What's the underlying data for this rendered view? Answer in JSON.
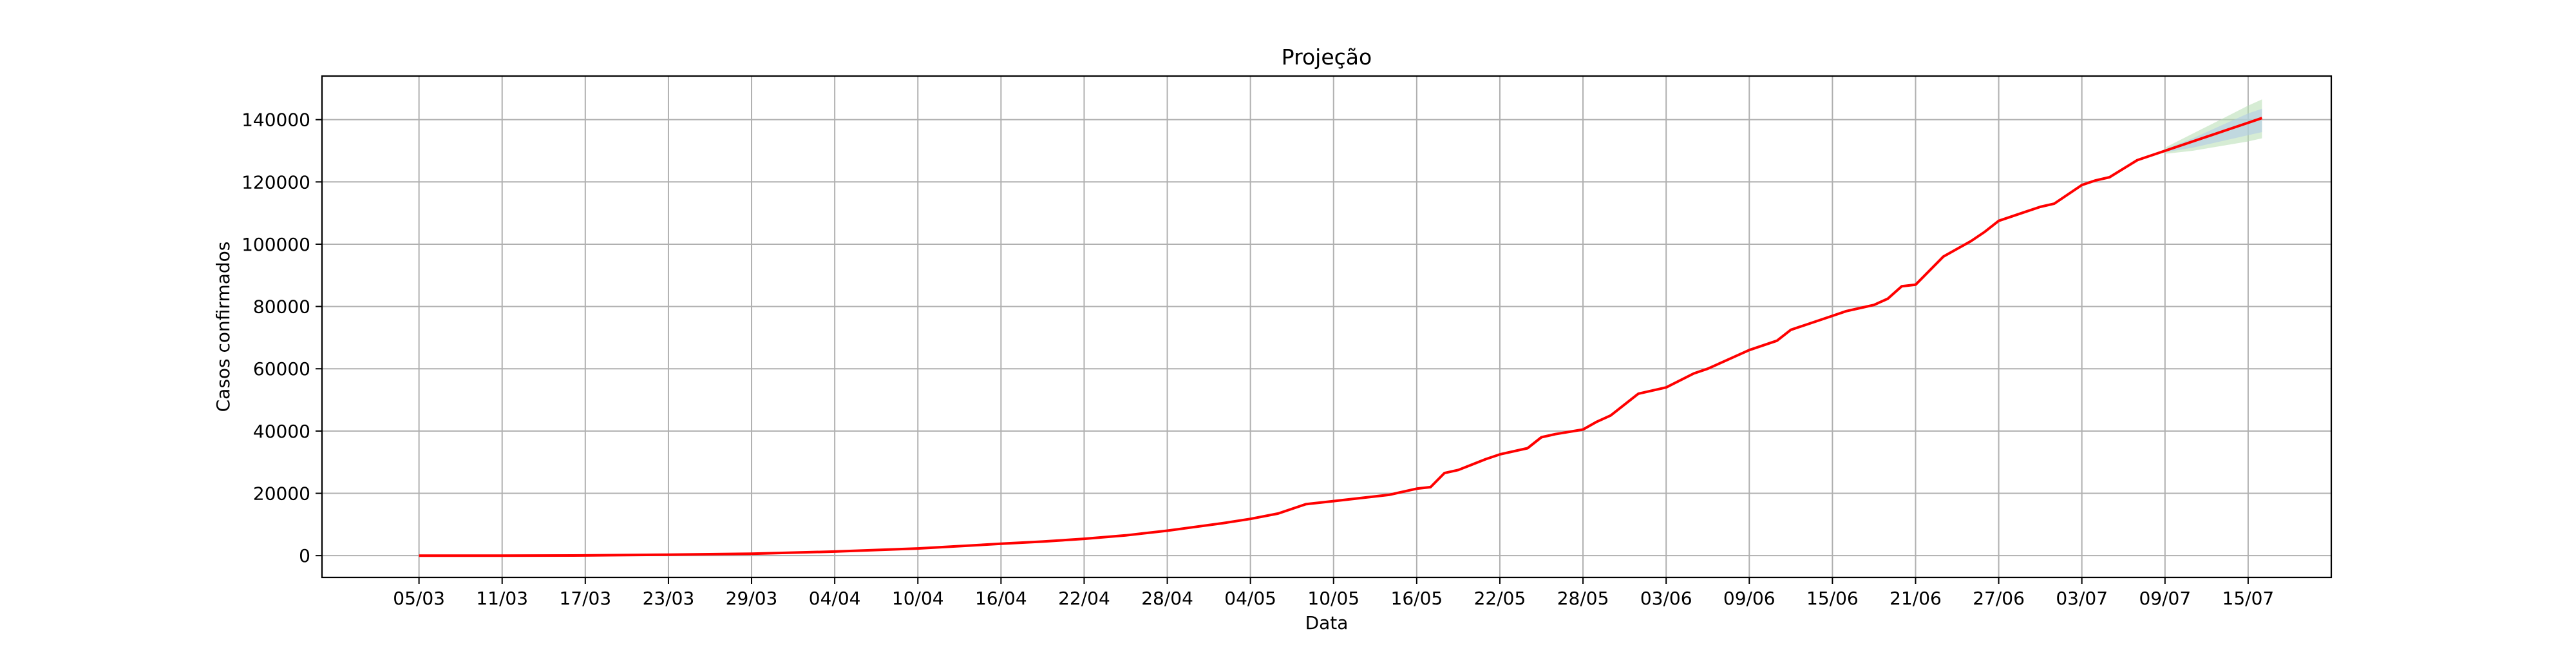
{
  "chart_data": {
    "type": "line",
    "title": "Projeção",
    "xlabel": "Data",
    "ylabel": "Casos confirmados",
    "grid": true,
    "legend": "none",
    "x_tick_labels": [
      "05/03",
      "11/03",
      "17/03",
      "23/03",
      "29/03",
      "04/04",
      "10/04",
      "16/04",
      "22/04",
      "28/04",
      "04/05",
      "10/05",
      "16/05",
      "22/05",
      "28/05",
      "03/06",
      "09/06",
      "15/06",
      "21/06",
      "27/06",
      "03/07",
      "09/07",
      "15/07"
    ],
    "y_ticks": [
      0,
      20000,
      40000,
      60000,
      80000,
      100000,
      120000,
      140000
    ],
    "ylim": [
      -7000,
      154000
    ],
    "x_unit": "day",
    "xlim": [
      "2020-02-27",
      "2020-07-21"
    ],
    "colors": {
      "line": "#ff0000",
      "band_outer": "#b5dcb0",
      "band_inner": "#b0cce6",
      "grid": "#b0b0b0",
      "axis": "#000000"
    },
    "series": [
      {
        "x": [
          "2020-03-05",
          "2020-03-11",
          "2020-03-17",
          "2020-03-23",
          "2020-03-29",
          "2020-04-04",
          "2020-04-10",
          "2020-04-16",
          "2020-04-19",
          "2020-04-22",
          "2020-04-25",
          "2020-04-28",
          "2020-04-30",
          "2020-05-02",
          "2020-05-04",
          "2020-05-06",
          "2020-05-08",
          "2020-05-10",
          "2020-05-12",
          "2020-05-14",
          "2020-05-16",
          "2020-05-17",
          "2020-05-18",
          "2020-05-19",
          "2020-05-21",
          "2020-05-22",
          "2020-05-24",
          "2020-05-25",
          "2020-05-26",
          "2020-05-28",
          "2020-05-29",
          "2020-05-30",
          "2020-06-01",
          "2020-06-03",
          "2020-06-05",
          "2020-06-06",
          "2020-06-07",
          "2020-06-09",
          "2020-06-11",
          "2020-06-12",
          "2020-06-13",
          "2020-06-15",
          "2020-06-16",
          "2020-06-17",
          "2020-06-18",
          "2020-06-19",
          "2020-06-20",
          "2020-06-21",
          "2020-06-23",
          "2020-06-25",
          "2020-06-26",
          "2020-06-27",
          "2020-06-29",
          "2020-06-30",
          "2020-07-01",
          "2020-07-03",
          "2020-07-04",
          "2020-07-05",
          "2020-07-07",
          "2020-07-09",
          "2020-07-11",
          "2020-07-13",
          "2020-07-15",
          "2020-07-16"
        ],
        "y": [
          0,
          0,
          50,
          300,
          600,
          1300,
          2300,
          3800,
          4500,
          5400,
          6500,
          8000,
          9200,
          10400,
          11800,
          13500,
          16500,
          17500,
          18500,
          19500,
          21500,
          22000,
          26500,
          27500,
          31000,
          32500,
          34500,
          38000,
          39000,
          40500,
          43000,
          45000,
          52000,
          54000,
          58500,
          60000,
          62000,
          66000,
          69000,
          72500,
          74000,
          77000,
          78500,
          79500,
          80500,
          82500,
          86500,
          87000,
          96000,
          101000,
          104000,
          107500,
          110500,
          112000,
          113000,
          119000,
          120500,
          121500,
          127000,
          130000,
          133000,
          136000,
          139000,
          140500
        ]
      }
    ],
    "projection": {
      "x": [
        "2020-07-09",
        "2020-07-11",
        "2020-07-13",
        "2020-07-15",
        "2020-07-16"
      ],
      "inner_low": [
        129500,
        131000,
        133000,
        135000,
        136000
      ],
      "inner_high": [
        130500,
        134000,
        138000,
        142000,
        143500
      ],
      "outer_low": [
        129000,
        130000,
        131500,
        133000,
        134000
      ],
      "outer_high": [
        131000,
        135500,
        140000,
        144500,
        146500
      ]
    }
  }
}
